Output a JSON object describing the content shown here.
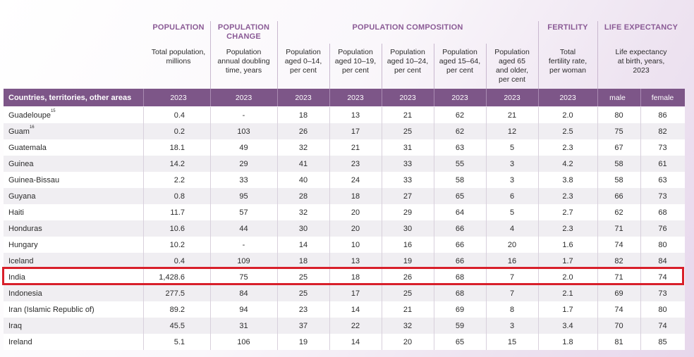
{
  "categories": {
    "population": "POPULATION",
    "population_change": "POPULATION\nCHANGE",
    "population_composition": "POPULATION COMPOSITION",
    "fertility": "FERTILITY",
    "life_expectancy": "LIFE EXPECTANCY"
  },
  "subheaders": {
    "total_population": "Total population,\nmillions",
    "doubling_time": "Population\nannual doubling\ntime, years",
    "aged_0_14": "Population\naged 0–14,\nper cent",
    "aged_10_19": "Population\naged 10–19,\nper cent",
    "aged_10_24": "Population\naged 10–24,\nper cent",
    "aged_15_64": "Population\naged 15–64,\nper cent",
    "aged_65": "Population\naged 65\nand older,\nper cent",
    "fertility_rate": "Total\nfertility rate,\nper woman",
    "life_exp": "Life expectancy\nat birth, years,\n2023"
  },
  "header_bar": {
    "first": "Countries, territories, other areas",
    "years": [
      "2023",
      "2023",
      "2023",
      "2023",
      "2023",
      "2023",
      "2023",
      "2023"
    ],
    "male": "male",
    "female": "female"
  },
  "rows": [
    {
      "country": "Guadeloupe",
      "sup": "15",
      "values": [
        "0.4",
        "-",
        "18",
        "13",
        "21",
        "62",
        "21",
        "2.0",
        "80",
        "86"
      ]
    },
    {
      "country": "Guam",
      "sup": "16",
      "values": [
        "0.2",
        "103",
        "26",
        "17",
        "25",
        "62",
        "12",
        "2.5",
        "75",
        "82"
      ]
    },
    {
      "country": "Guatemala",
      "sup": "",
      "values": [
        "18.1",
        "49",
        "32",
        "21",
        "31",
        "63",
        "5",
        "2.3",
        "67",
        "73"
      ]
    },
    {
      "country": "Guinea",
      "sup": "",
      "values": [
        "14.2",
        "29",
        "41",
        "23",
        "33",
        "55",
        "3",
        "4.2",
        "58",
        "61"
      ]
    },
    {
      "country": "Guinea-Bissau",
      "sup": "",
      "values": [
        "2.2",
        "33",
        "40",
        "24",
        "33",
        "58",
        "3",
        "3.8",
        "58",
        "63"
      ]
    },
    {
      "country": "Guyana",
      "sup": "",
      "values": [
        "0.8",
        "95",
        "28",
        "18",
        "27",
        "65",
        "6",
        "2.3",
        "66",
        "73"
      ]
    },
    {
      "country": "Haiti",
      "sup": "",
      "values": [
        "11.7",
        "57",
        "32",
        "20",
        "29",
        "64",
        "5",
        "2.7",
        "62",
        "68"
      ]
    },
    {
      "country": "Honduras",
      "sup": "",
      "values": [
        "10.6",
        "44",
        "30",
        "20",
        "30",
        "66",
        "4",
        "2.3",
        "71",
        "76"
      ]
    },
    {
      "country": "Hungary",
      "sup": "",
      "values": [
        "10.2",
        "-",
        "14",
        "10",
        "16",
        "66",
        "20",
        "1.6",
        "74",
        "80"
      ]
    },
    {
      "country": "Iceland",
      "sup": "",
      "values": [
        "0.4",
        "109",
        "18",
        "13",
        "19",
        "66",
        "16",
        "1.7",
        "82",
        "84"
      ]
    },
    {
      "country": "India",
      "sup": "",
      "values": [
        "1,428.6",
        "75",
        "25",
        "18",
        "26",
        "68",
        "7",
        "2.0",
        "71",
        "74"
      ]
    },
    {
      "country": "Indonesia",
      "sup": "",
      "values": [
        "277.5",
        "84",
        "25",
        "17",
        "25",
        "68",
        "7",
        "2.1",
        "69",
        "73"
      ]
    },
    {
      "country": "Iran (Islamic Republic of)",
      "sup": "",
      "values": [
        "89.2",
        "94",
        "23",
        "14",
        "21",
        "69",
        "8",
        "1.7",
        "74",
        "80"
      ]
    },
    {
      "country": "Iraq",
      "sup": "",
      "values": [
        "45.5",
        "31",
        "37",
        "22",
        "32",
        "59",
        "3",
        "3.4",
        "70",
        "74"
      ]
    },
    {
      "country": "Ireland",
      "sup": "",
      "values": [
        "5.1",
        "106",
        "19",
        "14",
        "20",
        "65",
        "15",
        "1.8",
        "81",
        "85"
      ]
    }
  ],
  "highlight_color": "#d81f2a",
  "header_color": "#7d5688",
  "category_color": "#8a5a95"
}
